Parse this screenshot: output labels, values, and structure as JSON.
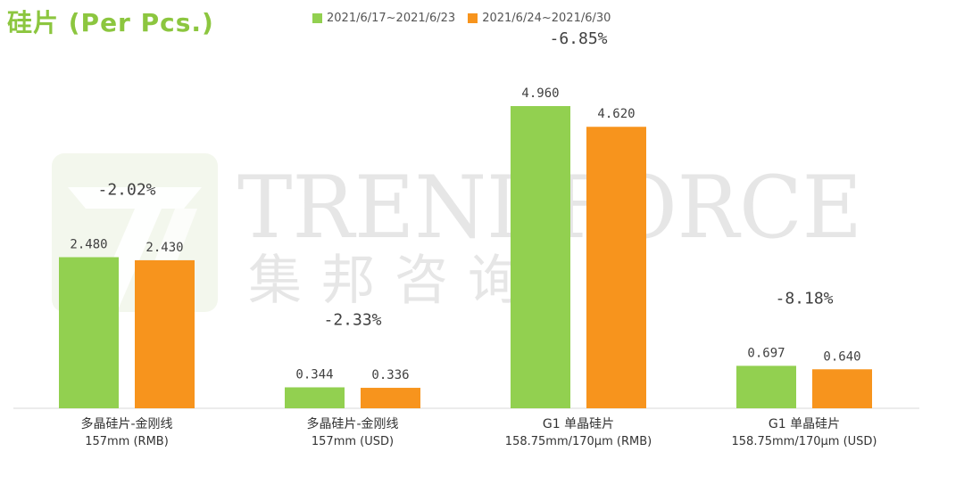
{
  "title": "硅片 (Per Pcs.)",
  "legend": [
    {
      "label": "2021/6/17~2021/6/23",
      "color": "#92d050"
    },
    {
      "label": "2021/6/24~2021/6/30",
      "color": "#f7941d"
    }
  ],
  "watermark": {
    "brand": "TRENDFORCE",
    "cn": "集邦咨询"
  },
  "chart_data": {
    "type": "bar",
    "categories": [
      {
        "line1": "多晶硅片-金刚线",
        "line2": "157mm (RMB)"
      },
      {
        "line1": "多晶硅片-金刚线",
        "line2": "157mm (USD)"
      },
      {
        "line1": "G1 单晶硅片",
        "line2": "158.75mm/170μm (RMB)"
      },
      {
        "line1": "G1 单晶硅片",
        "line2": "158.75mm/170μm (USD)"
      }
    ],
    "series": [
      {
        "name": "2021/6/17~2021/6/23",
        "color": "#92d050",
        "values": [
          2.48,
          0.344,
          4.96,
          0.697
        ],
        "labels": [
          "2.480",
          "0.344",
          "4.960",
          "0.697"
        ]
      },
      {
        "name": "2021/6/24~2021/6/30",
        "color": "#f7941d",
        "values": [
          2.43,
          0.336,
          4.62,
          0.64
        ],
        "labels": [
          "2.430",
          "0.336",
          "4.620",
          "0.640"
        ]
      }
    ],
    "changes": [
      "-2.02%",
      "-2.33%",
      "-6.85%",
      "-8.18%"
    ]
  }
}
